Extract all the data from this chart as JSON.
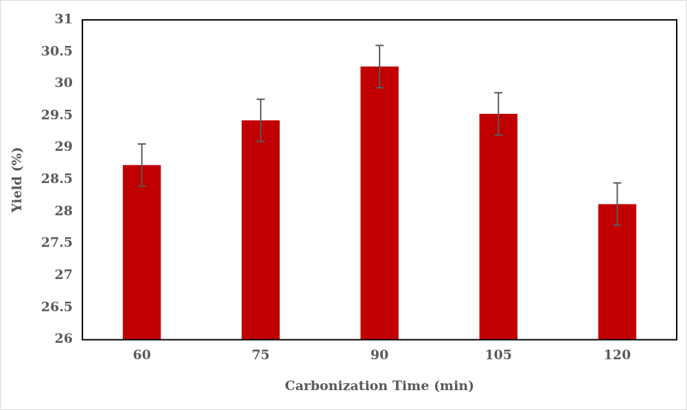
{
  "chart_data": {
    "type": "bar",
    "xlabel": "Carbonization Time (min)",
    "ylabel": "Yield (%)",
    "categories": [
      "60",
      "75",
      "90",
      "105",
      "120"
    ],
    "values": [
      28.73,
      29.43,
      30.27,
      29.53,
      28.12
    ],
    "errors": [
      0.33,
      0.33,
      0.33,
      0.33,
      0.33
    ],
    "color": "#c00000",
    "ylim": [
      26,
      31
    ],
    "yticks": [
      26,
      26.5,
      27,
      27.5,
      28,
      28.5,
      29,
      29.5,
      30,
      30.5,
      31
    ],
    "grid": false,
    "legend": false
  }
}
